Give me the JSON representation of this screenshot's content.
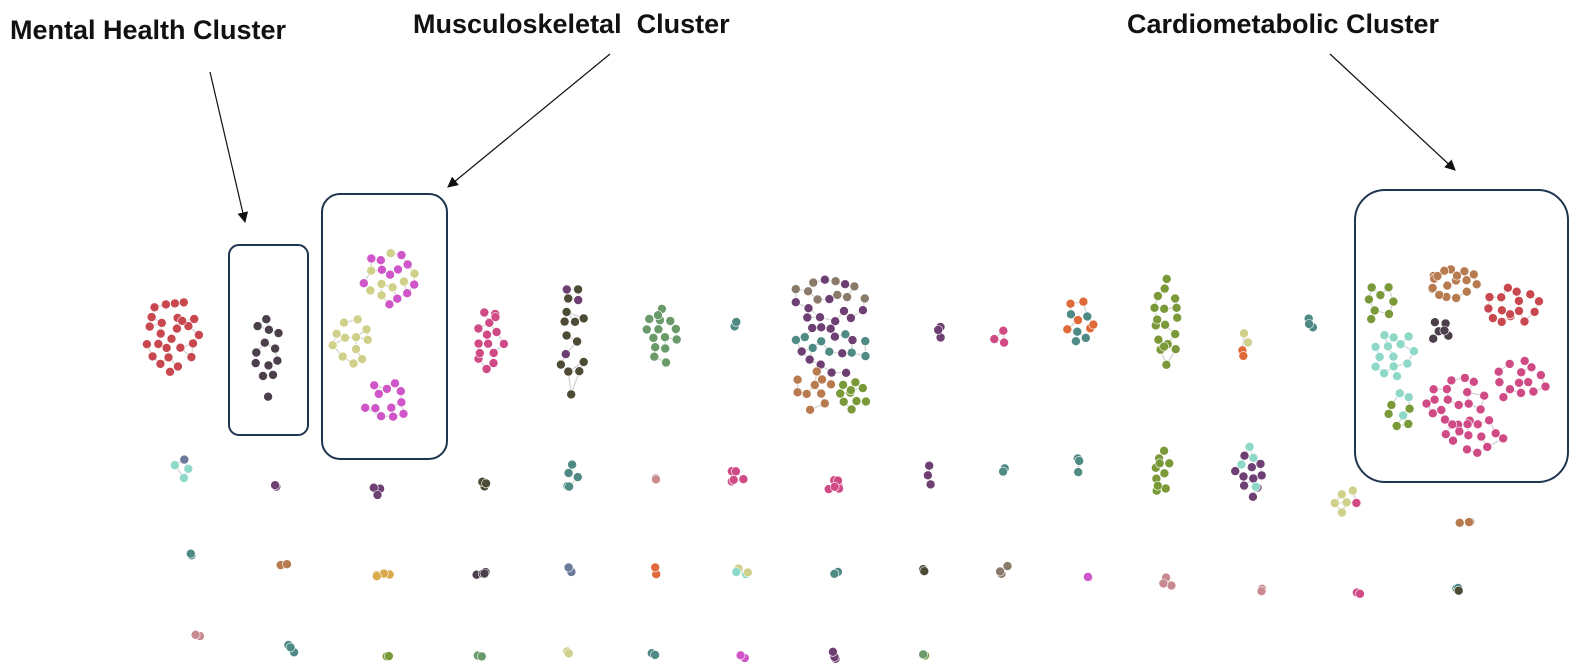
{
  "labels": {
    "mental_health": "Mental Health Cluster",
    "musculoskeletal": "Musculoskeletal  Cluster",
    "cardiometabolic": "Cardiometabolic Cluster"
  }
}
